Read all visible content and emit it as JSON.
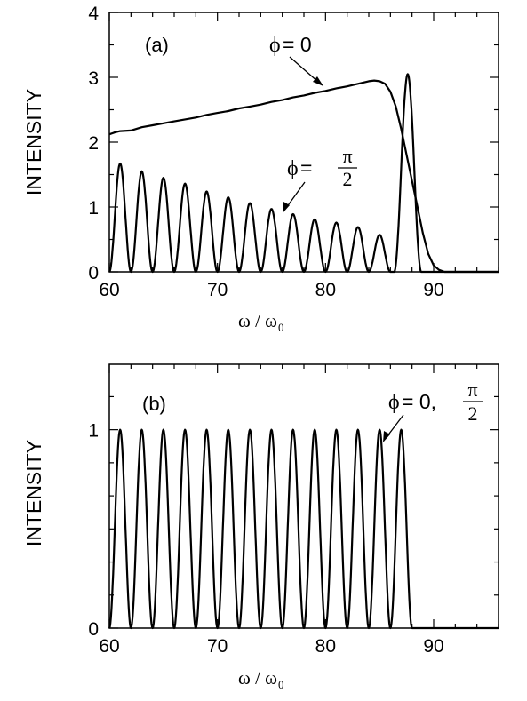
{
  "chart_data": [
    {
      "type": "line",
      "panel": "(a)",
      "xlabel": "ω / ω",
      "xlabel_sub": "0",
      "ylabel": "INTENSITY",
      "xlim": [
        60,
        96
      ],
      "ylim": [
        0,
        4
      ],
      "x_ticks": [
        60,
        70,
        80,
        90
      ],
      "y_ticks": [
        0,
        1,
        2,
        3,
        4
      ],
      "series": [
        {
          "name": "ϕ = 0",
          "annotation": {
            "phi": "ϕ",
            "eq": " = 0"
          },
          "points": [
            [
              60.0,
              2.12
            ],
            [
              60.5,
              2.15
            ],
            [
              61.0,
              2.17
            ],
            [
              62.0,
              2.18
            ],
            [
              63.0,
              2.23
            ],
            [
              64.0,
              2.26
            ],
            [
              65.0,
              2.29
            ],
            [
              66.0,
              2.32
            ],
            [
              67.0,
              2.35
            ],
            [
              68.0,
              2.38
            ],
            [
              69.0,
              2.42
            ],
            [
              70.0,
              2.45
            ],
            [
              71.0,
              2.48
            ],
            [
              72.0,
              2.52
            ],
            [
              73.0,
              2.55
            ],
            [
              74.0,
              2.58
            ],
            [
              75.0,
              2.62
            ],
            [
              76.0,
              2.65
            ],
            [
              77.0,
              2.69
            ],
            [
              78.0,
              2.72
            ],
            [
              79.0,
              2.76
            ],
            [
              80.0,
              2.79
            ],
            [
              81.0,
              2.83
            ],
            [
              82.0,
              2.86
            ],
            [
              83.0,
              2.9
            ],
            [
              84.0,
              2.94
            ],
            [
              84.5,
              2.95
            ],
            [
              85.0,
              2.94
            ],
            [
              85.5,
              2.9
            ],
            [
              86.0,
              2.78
            ],
            [
              86.5,
              2.55
            ],
            [
              87.0,
              2.2
            ],
            [
              87.5,
              1.8
            ],
            [
              88.0,
              1.4
            ],
            [
              88.5,
              1.0
            ],
            [
              89.0,
              0.6
            ],
            [
              89.5,
              0.28
            ],
            [
              90.0,
              0.1
            ],
            [
              90.5,
              0.03
            ],
            [
              91.0,
              0.0
            ],
            [
              96.0,
              0.0
            ]
          ]
        },
        {
          "name": "ϕ = π/2",
          "annotation": {
            "phi": "ϕ",
            "eq": " = ",
            "num": "π",
            "den": "2"
          },
          "peaks": [
            [
              61.0,
              1.67
            ],
            [
              63.0,
              1.55
            ],
            [
              65.0,
              1.45
            ],
            [
              67.0,
              1.36
            ],
            [
              69.0,
              1.24
            ],
            [
              71.0,
              1.15
            ],
            [
              73.0,
              1.06
            ],
            [
              75.0,
              0.97
            ],
            [
              77.0,
              0.89
            ],
            [
              79.0,
              0.81
            ],
            [
              81.0,
              0.76
            ],
            [
              83.0,
              0.69
            ],
            [
              85.0,
              0.57
            ],
            [
              87.6,
              3.05
            ]
          ],
          "cutoff": 91.0
        }
      ]
    },
    {
      "type": "line",
      "panel": "(b)",
      "xlabel": "ω / ω",
      "xlabel_sub": "0",
      "ylabel": "INTENSITY",
      "xlim": [
        60,
        96
      ],
      "ylim": [
        0,
        1.33
      ],
      "x_ticks": [
        60,
        70,
        80,
        90
      ],
      "y_ticks": [
        0,
        1
      ],
      "series": [
        {
          "name": "ϕ = 0, π/2",
          "annotation": {
            "phi": "ϕ",
            "eq": " = 0, ",
            "num": "π",
            "den": "2"
          },
          "peaks": [
            [
              61,
              1.0
            ],
            [
              63,
              1.0
            ],
            [
              65,
              1.0
            ],
            [
              67,
              1.0
            ],
            [
              69,
              1.0
            ],
            [
              71,
              1.0
            ],
            [
              73,
              1.0
            ],
            [
              75,
              1.0
            ],
            [
              77,
              1.0
            ],
            [
              79,
              1.0
            ],
            [
              81,
              1.0
            ],
            [
              83,
              1.0
            ],
            [
              85,
              1.0
            ],
            [
              87,
              1.0
            ]
          ],
          "cutoff": 88.0
        }
      ]
    }
  ]
}
